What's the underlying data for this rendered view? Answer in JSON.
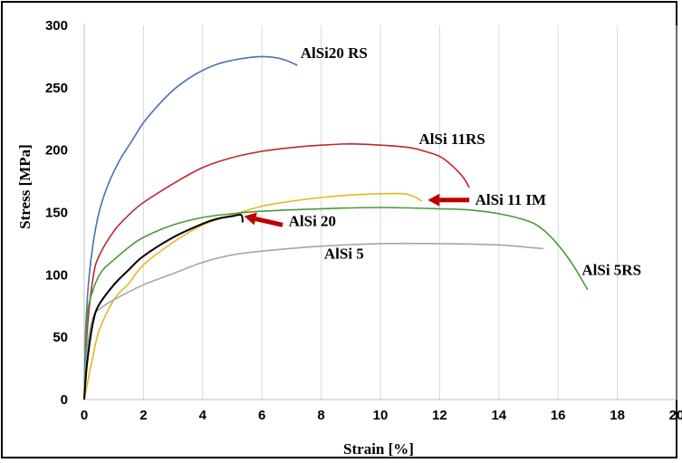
{
  "chart_data": {
    "type": "line",
    "xlabel": "Strain [%]",
    "ylabel": "Stress [MPa]",
    "xlim": [
      0,
      20
    ],
    "ylim": [
      0,
      300
    ],
    "xticks": [
      "0",
      "2",
      "4",
      "6",
      "8",
      "10",
      "12",
      "14",
      "16",
      "18",
      "20"
    ],
    "yticks": [
      "0",
      "50",
      "100",
      "150",
      "200",
      "250",
      "300"
    ],
    "grid": "vertical",
    "series": [
      {
        "name": "AlSi20 RS",
        "color": "#4a72b0",
        "points": [
          [
            0,
            0
          ],
          [
            0.05,
            55
          ],
          [
            0.15,
            95
          ],
          [
            0.3,
            125
          ],
          [
            0.5,
            150
          ],
          [
            0.8,
            172
          ],
          [
            1.2,
            192
          ],
          [
            1.6,
            207
          ],
          [
            2,
            222
          ],
          [
            2.5,
            236
          ],
          [
            3,
            248
          ],
          [
            3.5,
            257
          ],
          [
            4,
            264
          ],
          [
            4.5,
            269
          ],
          [
            5,
            272
          ],
          [
            5.5,
            274
          ],
          [
            6,
            275
          ],
          [
            6.5,
            274
          ],
          [
            6.8,
            272
          ],
          [
            7.2,
            268
          ]
        ]
      },
      {
        "name": "AlSi 11RS",
        "color": "#c0262d",
        "points": [
          [
            0,
            0
          ],
          [
            0.1,
            55
          ],
          [
            0.3,
            98
          ],
          [
            0.5,
            115
          ],
          [
            1,
            135
          ],
          [
            1.5,
            148
          ],
          [
            2,
            158
          ],
          [
            3,
            173
          ],
          [
            4,
            186
          ],
          [
            5,
            194
          ],
          [
            6,
            199
          ],
          [
            7,
            202
          ],
          [
            8,
            204
          ],
          [
            9,
            205
          ],
          [
            10,
            204
          ],
          [
            11,
            202
          ],
          [
            11.5,
            199
          ],
          [
            12,
            195
          ],
          [
            12.4,
            188
          ],
          [
            12.8,
            178
          ],
          [
            13,
            170
          ]
        ]
      },
      {
        "name": "AlSi 11 IM",
        "color": "#e8b820",
        "points": [
          [
            0,
            0
          ],
          [
            0.1,
            12
          ],
          [
            0.25,
            30
          ],
          [
            0.5,
            55
          ],
          [
            1,
            80
          ],
          [
            1.5,
            93
          ],
          [
            2,
            108
          ],
          [
            3,
            126
          ],
          [
            4,
            140
          ],
          [
            5,
            148
          ],
          [
            6,
            155
          ],
          [
            7,
            159
          ],
          [
            8,
            162
          ],
          [
            9,
            164
          ],
          [
            10,
            165
          ],
          [
            10.8,
            165
          ],
          [
            11.2,
            162
          ],
          [
            11.4,
            159
          ]
        ]
      },
      {
        "name": "AlSi 5RS",
        "color": "#4a9a3a",
        "points": [
          [
            0,
            0
          ],
          [
            0.1,
            65
          ],
          [
            0.3,
            88
          ],
          [
            0.6,
            103
          ],
          [
            1,
            112
          ],
          [
            1.5,
            122
          ],
          [
            2,
            130
          ],
          [
            3,
            140
          ],
          [
            4,
            146
          ],
          [
            5,
            149
          ],
          [
            6,
            151
          ],
          [
            8,
            153
          ],
          [
            10,
            154
          ],
          [
            12,
            153
          ],
          [
            13,
            152
          ],
          [
            14,
            149
          ],
          [
            15,
            143
          ],
          [
            15.5,
            136
          ],
          [
            16,
            124
          ],
          [
            16.5,
            108
          ],
          [
            17,
            88
          ]
        ]
      },
      {
        "name": "AlSi 5",
        "color": "#a6a6a6",
        "points": [
          [
            0,
            0
          ],
          [
            0.1,
            40
          ],
          [
            0.3,
            66
          ],
          [
            0.6,
            74
          ],
          [
            1,
            80
          ],
          [
            2,
            92
          ],
          [
            3,
            101
          ],
          [
            4,
            110
          ],
          [
            5,
            116
          ],
          [
            6,
            119
          ],
          [
            8,
            123
          ],
          [
            10,
            125
          ],
          [
            12,
            125
          ],
          [
            14,
            124
          ],
          [
            15,
            122
          ],
          [
            15.5,
            121
          ]
        ]
      },
      {
        "name": "AlSi 20",
        "color": "#000000",
        "points": [
          [
            0,
            0
          ],
          [
            0.1,
            30
          ],
          [
            0.3,
            62
          ],
          [
            0.5,
            76
          ],
          [
            1,
            92
          ],
          [
            1.5,
            104
          ],
          [
            2,
            115
          ],
          [
            3,
            130
          ],
          [
            4,
            141
          ],
          [
            4.5,
            145
          ],
          [
            5,
            147
          ],
          [
            5.3,
            148
          ],
          [
            5.35,
            142
          ]
        ]
      }
    ],
    "annotations": [
      {
        "text": "AlSi20 RS",
        "x": 7.3,
        "y": 274
      },
      {
        "text": "AlSi 11RS",
        "x": 11.3,
        "y": 205
      },
      {
        "text": "AlSi 11 IM",
        "x": 13.2,
        "y": 156
      },
      {
        "text": "AlSi 20",
        "x": 6.9,
        "y": 139
      },
      {
        "text": "AlSi 5",
        "x": 8.1,
        "y": 113
      },
      {
        "text": "AlSi 5RS",
        "x": 16.8,
        "y": 100
      }
    ],
    "arrows": [
      {
        "color": "#c00000",
        "from": [
          13.0,
          160
        ],
        "to": [
          11.6,
          160
        ]
      },
      {
        "color": "#c00000",
        "from": [
          6.7,
          140
        ],
        "to": [
          5.4,
          147
        ]
      }
    ]
  }
}
